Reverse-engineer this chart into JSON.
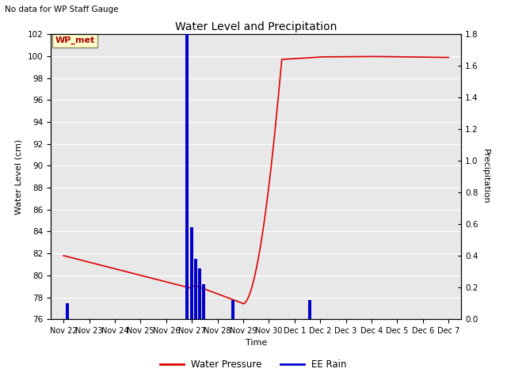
{
  "title": "Water Level and Precipitation",
  "subtitle": "No data for WP Staff Gauge",
  "ylabel_left": "Water Level (cm)",
  "ylabel_right": "Precipitation",
  "xlabel": "Time",
  "ylim_left": [
    76,
    102
  ],
  "ylim_right": [
    0.0,
    1.8
  ],
  "yticks_left": [
    76,
    78,
    80,
    82,
    84,
    86,
    88,
    90,
    92,
    94,
    96,
    98,
    100,
    102
  ],
  "yticks_right": [
    0.0,
    0.2,
    0.4,
    0.6,
    0.8,
    1.0,
    1.2,
    1.4,
    1.6,
    1.8
  ],
  "background_color": "#e8e8e8",
  "legend_entries": [
    "Water Pressure",
    "EE Rain"
  ],
  "legend_colors": [
    "#dd0000",
    "#0000cc"
  ],
  "wp_met_label": "WP_met",
  "wp_met_bg": "#ffffcc",
  "wp_met_border": "#aaaaaa",
  "wp_met_color": "#aa0000",
  "tick_labels": [
    "Nov 22",
    "Nov 23",
    "Nov 24",
    "Nov 25",
    "Nov 26",
    "Nov 27",
    "Nov 28",
    "Nov 29",
    "Nov 30",
    "Dec 1",
    "Dec 2",
    "Dec 3",
    "Dec 4",
    "Dec 5",
    "Dec 6",
    "Dec 7"
  ],
  "rain_x": [
    0.15,
    4.8,
    5.0,
    5.15,
    5.3,
    5.45,
    6.6,
    9.6
  ],
  "rain_h": [
    0.1,
    1.8,
    0.58,
    0.38,
    0.32,
    0.22,
    0.12,
    0.12
  ]
}
